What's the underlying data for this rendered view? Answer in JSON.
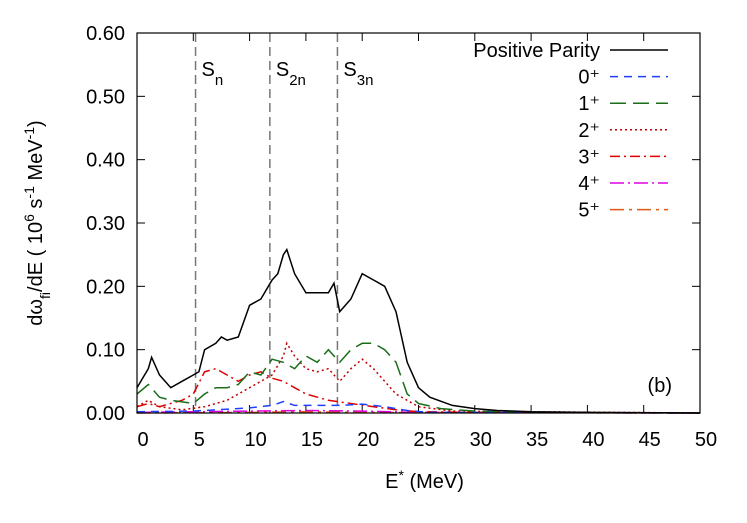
{
  "chart_data": {
    "type": "line",
    "xlim": [
      0,
      50
    ],
    "xticks": [
      0,
      5,
      10,
      15,
      20,
      25,
      30,
      35,
      40,
      45,
      50
    ],
    "ylim": [
      0,
      0.6
    ],
    "yticks": [
      {
        "value": 0,
        "label": "0.00"
      },
      {
        "value": 0.1,
        "label": "0.10"
      },
      {
        "value": 0.2,
        "label": "0.20"
      },
      {
        "value": 0.3,
        "label": "0.30"
      },
      {
        "value": 0.4,
        "label": "0.40"
      },
      {
        "value": 0.5,
        "label": "0.50"
      },
      {
        "value": 0.6,
        "label": "0.60"
      }
    ],
    "xlabel": [
      {
        "t": "E"
      },
      {
        "t": "*",
        "s": "sup"
      },
      {
        "t": " (MeV)"
      }
    ],
    "ylabel": [
      {
        "t": "dω"
      },
      {
        "t": "fi",
        "s": "sub"
      },
      {
        "t": "/dE ( 10"
      },
      {
        "t": "6",
        "s": "sup"
      },
      {
        "t": " s"
      },
      {
        "t": "-1",
        "s": "sup"
      },
      {
        "t": " MeV"
      },
      {
        "t": "-1",
        "s": "sup"
      },
      {
        "t": ")"
      }
    ],
    "thresholds": [
      {
        "x": 5.2,
        "label": "S",
        "sub": "n"
      },
      {
        "x": 11.8,
        "label": "S",
        "sub": "2n"
      },
      {
        "x": 17.8,
        "label": "S",
        "sub": "3n"
      }
    ],
    "panel_label": "(b)",
    "legend": "upper right",
    "series": [
      {
        "name": "Positive Parity",
        "color": "#000000",
        "dash": "none",
        "x": [
          0,
          1,
          1.3,
          2,
          3,
          4,
          5,
          5.5,
          6,
          7,
          7.5,
          8,
          9,
          10,
          11,
          12,
          12.5,
          13,
          13.3,
          14,
          15,
          16,
          17,
          17.5,
          18,
          19,
          20,
          21,
          22,
          23,
          24,
          25,
          26,
          28,
          30,
          32,
          35,
          40,
          50
        ],
        "values": [
          0.04,
          0.07,
          0.088,
          0.06,
          0.04,
          0.05,
          0.06,
          0.065,
          0.1,
          0.11,
          0.12,
          0.115,
          0.12,
          0.17,
          0.18,
          0.21,
          0.22,
          0.25,
          0.258,
          0.22,
          0.19,
          0.19,
          0.19,
          0.205,
          0.16,
          0.18,
          0.22,
          0.21,
          0.2,
          0.16,
          0.08,
          0.04,
          0.025,
          0.012,
          0.007,
          0.004,
          0.002,
          0.001,
          0
        ]
      },
      {
        "name": "0⁺",
        "color": "#1f3fff",
        "dash": "8 6",
        "x": [
          0,
          5,
          10,
          12,
          13,
          14,
          16,
          18,
          20,
          22,
          24,
          26,
          50
        ],
        "values": [
          0.002,
          0.003,
          0.008,
          0.012,
          0.018,
          0.012,
          0.012,
          0.012,
          0.014,
          0.01,
          0.004,
          0.001,
          0
        ]
      },
      {
        "name": "1⁺",
        "color": "#1a6e1a",
        "dash": "16 7",
        "x": [
          0,
          1,
          2,
          3,
          5,
          6,
          7,
          8,
          9,
          10,
          11,
          12,
          13,
          14,
          15,
          16,
          16.5,
          17,
          18,
          19,
          20,
          21,
          22,
          23,
          24,
          25,
          27,
          30,
          35,
          50
        ],
        "values": [
          0.03,
          0.045,
          0.025,
          0.02,
          0.015,
          0.03,
          0.04,
          0.04,
          0.045,
          0.065,
          0.06,
          0.085,
          0.08,
          0.07,
          0.09,
          0.08,
          0.09,
          0.1,
          0.08,
          0.1,
          0.11,
          0.11,
          0.1,
          0.08,
          0.03,
          0.015,
          0.007,
          0.003,
          0.001,
          0
        ]
      },
      {
        "name": "2⁺",
        "color": "#c00000",
        "dash": "2 3",
        "x": [
          0,
          1,
          2,
          4,
          6,
          8,
          10,
          11,
          12,
          13,
          13.3,
          14,
          15,
          16,
          17,
          18,
          19,
          20,
          21,
          22,
          23,
          25,
          28,
          50
        ],
        "values": [
          0.01,
          0.02,
          0.01,
          0.005,
          0.01,
          0.02,
          0.04,
          0.05,
          0.06,
          0.09,
          0.11,
          0.09,
          0.07,
          0.065,
          0.07,
          0.05,
          0.07,
          0.085,
          0.07,
          0.05,
          0.03,
          0.01,
          0.003,
          0
        ]
      },
      {
        "name": "3⁺",
        "color": "#e00000",
        "dash": "10 4 2 4",
        "x": [
          0,
          1,
          2,
          4,
          5,
          6,
          7,
          8,
          9,
          10,
          11,
          12,
          13,
          14,
          15,
          17,
          19,
          21,
          23,
          25,
          30,
          50
        ],
        "values": [
          0.01,
          0.015,
          0.01,
          0.02,
          0.03,
          0.065,
          0.07,
          0.06,
          0.05,
          0.06,
          0.065,
          0.055,
          0.05,
          0.04,
          0.03,
          0.02,
          0.015,
          0.01,
          0.005,
          0.002,
          0.001,
          0
        ]
      },
      {
        "name": "4⁺",
        "color": "#e000e0",
        "dash": "14 4 2 4",
        "x": [
          0,
          10,
          15,
          20,
          25,
          50
        ],
        "values": [
          0.001,
          0.003,
          0.004,
          0.003,
          0.001,
          0
        ]
      },
      {
        "name": "5⁺",
        "color": "#e05a10",
        "dash": "14 5 3 5",
        "x": [
          0,
          10,
          15,
          20,
          50
        ],
        "values": [
          0,
          0.001,
          0.002,
          0.001,
          0
        ]
      }
    ]
  }
}
